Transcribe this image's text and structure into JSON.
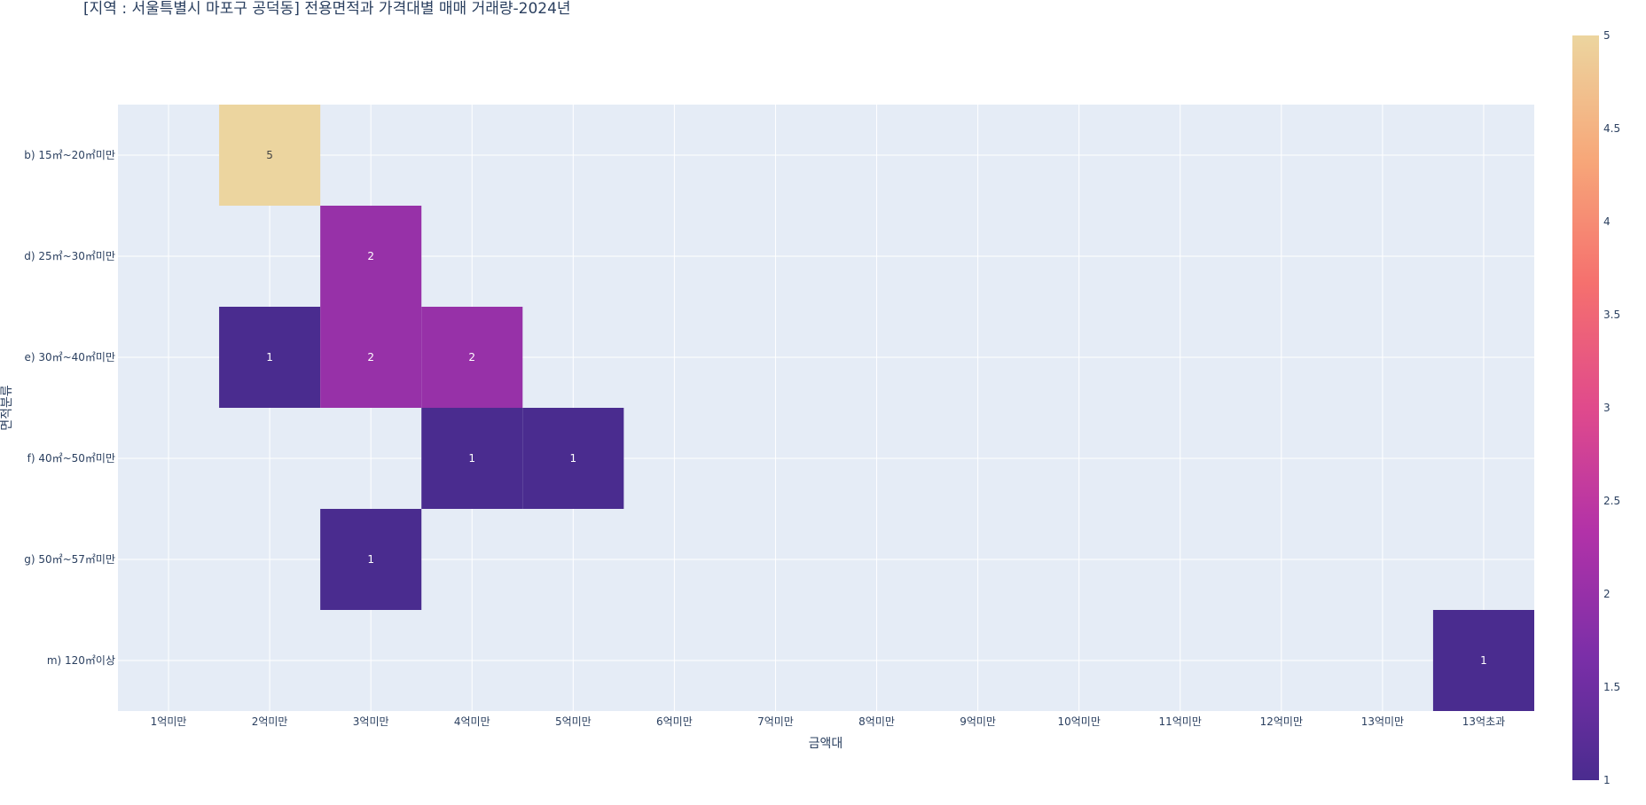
{
  "chart_data": {
    "type": "heatmap",
    "title": "[지역 : 서울특별시 마포구 공덕동] 전용면적과 가격대별 매매 거래량-2024년",
    "xlabel": "금액대",
    "ylabel": "면적분류",
    "x_categories": [
      "1억미만",
      "2억미만",
      "3억미만",
      "4억미만",
      "5억미만",
      "6억미만",
      "7억미만",
      "8억미만",
      "9억미만",
      "10억미만",
      "11억미만",
      "12억미만",
      "13억미만",
      "13억초과"
    ],
    "y_categories": [
      "b) 15㎡~20㎡미만",
      "d) 25㎡~30㎡미만",
      "e) 30㎡~40㎡미만",
      "f) 40㎡~50㎡미만",
      "g) 50㎡~57㎡미만",
      "m) 120㎡이상"
    ],
    "cells": [
      {
        "x": "2억미만",
        "y": "b) 15㎡~20㎡미만",
        "value": 5
      },
      {
        "x": "3억미만",
        "y": "d) 25㎡~30㎡미만",
        "value": 2
      },
      {
        "x": "2억미만",
        "y": "e) 30㎡~40㎡미만",
        "value": 1
      },
      {
        "x": "3억미만",
        "y": "e) 30㎡~40㎡미만",
        "value": 2
      },
      {
        "x": "4억미만",
        "y": "e) 30㎡~40㎡미만",
        "value": 2
      },
      {
        "x": "4억미만",
        "y": "f) 40㎡~50㎡미만",
        "value": 1
      },
      {
        "x": "5억미만",
        "y": "f) 40㎡~50㎡미만",
        "value": 1
      },
      {
        "x": "3억미만",
        "y": "g) 50㎡~57㎡미만",
        "value": 1
      },
      {
        "x": "13억초과",
        "y": "m) 120㎡이상",
        "value": 1
      }
    ],
    "colorscale": {
      "min": 1,
      "max": 5,
      "stops": [
        "#4a2c8f",
        "#7b2fa8",
        "#b232a8",
        "#e04a8c",
        "#f5706e",
        "#f7a779",
        "#ecd59f"
      ],
      "ticks": [
        "1",
        "1.5",
        "2",
        "2.5",
        "3",
        "3.5",
        "4",
        "4.5",
        "5"
      ]
    },
    "grid": true,
    "legend": "colorbar-right"
  }
}
